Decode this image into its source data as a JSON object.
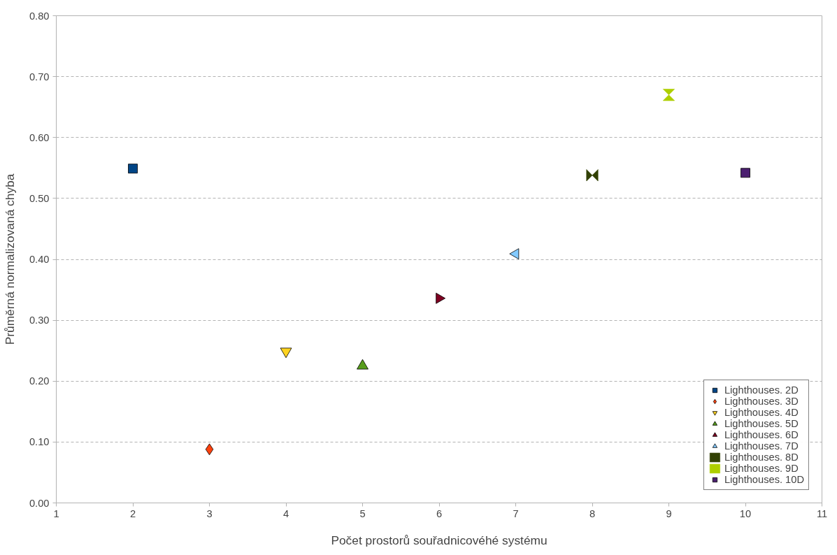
{
  "chart_data": {
    "type": "scatter",
    "xlabel": "Počet prostorů souřadnicovéhé systému",
    "ylabel": "Průměrná normalizovaná chyba",
    "xlim": [
      1,
      11
    ],
    "xticks": [
      1,
      2,
      3,
      4,
      5,
      6,
      7,
      8,
      9,
      10,
      11
    ],
    "ylim": [
      0,
      0.8
    ],
    "yticks": [
      {
        "value": 0,
        "label": "0.00"
      },
      {
        "value": 0.1,
        "label": "0.10"
      },
      {
        "value": 0.2,
        "label": "0.20"
      },
      {
        "value": 0.3,
        "label": "0.30"
      },
      {
        "value": 0.4,
        "label": "0.40"
      },
      {
        "value": 0.5,
        "label": "0.50"
      },
      {
        "value": 0.6,
        "label": "0.60"
      },
      {
        "value": 0.7,
        "label": "0.70"
      },
      {
        "value": 0.8,
        "label": "0.80"
      }
    ],
    "grid": "y",
    "legend": "bottom right",
    "series": [
      {
        "name": "Lighthouses. 2D",
        "color": "#004586",
        "marker": "square",
        "x": [
          2
        ],
        "values": [
          0.549
        ]
      },
      {
        "name": "Lighthouses. 3D",
        "color": "#ff420e",
        "marker": "diamond",
        "x": [
          3
        ],
        "values": [
          0.088
        ]
      },
      {
        "name": "Lighthouses. 4D",
        "color": "#ffd320",
        "marker": "triangle_down",
        "x": [
          4
        ],
        "values": [
          0.249
        ]
      },
      {
        "name": "Lighthouses. 5D",
        "color": "#579d1c",
        "marker": "triangle",
        "x": [
          5
        ],
        "values": [
          0.225
        ]
      },
      {
        "name": "Lighthouses. 6D",
        "color": "#7e0021",
        "marker": "triangle_right",
        "x": [
          6
        ],
        "values": [
          0.336
        ]
      },
      {
        "name": "Lighthouses. 7D",
        "color": "#83caff",
        "marker": "triangle_left",
        "x": [
          7
        ],
        "values": [
          0.409
        ]
      },
      {
        "name": "Lighthouses. 8D",
        "color": "#314004",
        "x": [
          8
        ],
        "values": [
          0.538
        ]
      },
      {
        "name": "Lighthouses. 9D",
        "color": "#aecf00",
        "x": [
          9
        ],
        "values": [
          0.67
        ]
      },
      {
        "name": "Lighthouses. 10D",
        "color": "#4b1f6f",
        "marker": "square",
        "x": [
          10
        ],
        "values": [
          0.542
        ]
      }
    ]
  }
}
